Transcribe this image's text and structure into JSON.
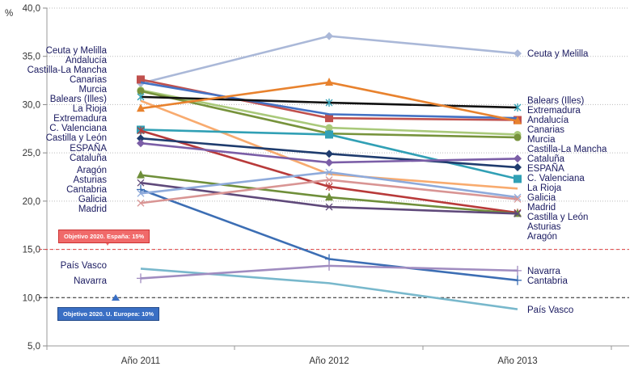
{
  "chart_data": {
    "type": "line",
    "ylabel": "%",
    "ylim": [
      5,
      40
    ],
    "yticks": [
      "5,0",
      "10,0",
      "15,0",
      "20,0",
      "25,0",
      "30,0",
      "35,0",
      "40,0"
    ],
    "yticks_values": [
      5,
      10,
      15,
      20,
      25,
      30,
      35,
      40
    ],
    "categories": [
      "Año 2011",
      "Año 2012",
      "Año 2013"
    ],
    "grid": "horizontal dotted",
    "reference_lines": [
      {
        "value": 15,
        "label": "Objetivo 2020. España: 15%",
        "color": "#e04040"
      },
      {
        "value": 10,
        "label": "Objetivo 2020. U. Europea: 10%",
        "color": "#222222",
        "box_color": "#3a6fc4"
      }
    ],
    "series": [
      {
        "name": "Ceuta y Melilla",
        "values": [
          32.2,
          37.1,
          35.3
        ],
        "color": "#aab8d8",
        "marker": "diamond"
      },
      {
        "name": "Andalucía",
        "values": [
          32.6,
          28.6,
          28.4
        ],
        "color": "#c0504d",
        "marker": "square"
      },
      {
        "name": "Castilla-La Mancha",
        "values": [
          32.3,
          29.0,
          28.6
        ],
        "color": "#4472c4",
        "marker": "none"
      },
      {
        "name": "Canarias",
        "values": [
          31.5,
          27.6,
          26.9
        ],
        "color": "#a9c97a",
        "marker": "circle"
      },
      {
        "name": "Murcia",
        "values": [
          31.4,
          27.0,
          26.6
        ],
        "color": "#77933c",
        "marker": "circle"
      },
      {
        "name": "Balears (Illes)",
        "values": [
          30.8,
          30.2,
          29.7
        ],
        "color": "#111111",
        "marker": "star"
      },
      {
        "name": "La Rioja",
        "values": [
          30.4,
          22.8,
          21.3
        ],
        "color": "#f8ab6f",
        "marker": "none"
      },
      {
        "name": "Extremadura",
        "values": [
          29.6,
          32.3,
          28.3
        ],
        "color": "#e8822e",
        "marker": "triangle"
      },
      {
        "name": "C. Valenciana",
        "values": [
          27.4,
          26.9,
          22.3
        ],
        "color": "#31a0b5",
        "marker": "square"
      },
      {
        "name": "Castilla  y León",
        "values": [
          27.3,
          21.5,
          18.8
        ],
        "color": "#b83a3a",
        "marker": "star"
      },
      {
        "name": "ESPAÑA",
        "values": [
          26.5,
          24.9,
          23.5
        ],
        "color": "#1f3c6e",
        "marker": "diamond"
      },
      {
        "name": "Cataluña",
        "values": [
          26.0,
          24.0,
          24.4
        ],
        "color": "#7b5ea7",
        "marker": "diamond"
      },
      {
        "name": "Aragón",
        "values": [
          22.7,
          20.4,
          18.7
        ],
        "color": "#6f8f3a",
        "marker": "triangle"
      },
      {
        "name": "Asturias",
        "values": [
          21.9,
          19.4,
          18.7
        ],
        "color": "#5f497a",
        "marker": "x"
      },
      {
        "name": "Cantabria",
        "values": [
          21.2,
          14.0,
          11.8
        ],
        "color": "#3c6eb4",
        "marker": "plus"
      },
      {
        "name": "Galicia",
        "values": [
          20.8,
          23.0,
          20.4
        ],
        "color": "#8eaadb",
        "marker": "x"
      },
      {
        "name": "Madrid",
        "values": [
          19.8,
          22.2,
          20.2
        ],
        "color": "#d99594",
        "marker": "x"
      },
      {
        "name": "País  Vasco",
        "values": [
          13.0,
          11.5,
          8.8
        ],
        "color": "#78b8cc",
        "marker": "none"
      },
      {
        "name": "Navarra",
        "values": [
          12.0,
          13.3,
          12.8
        ],
        "color": "#a08cc0",
        "marker": "plus"
      }
    ]
  }
}
